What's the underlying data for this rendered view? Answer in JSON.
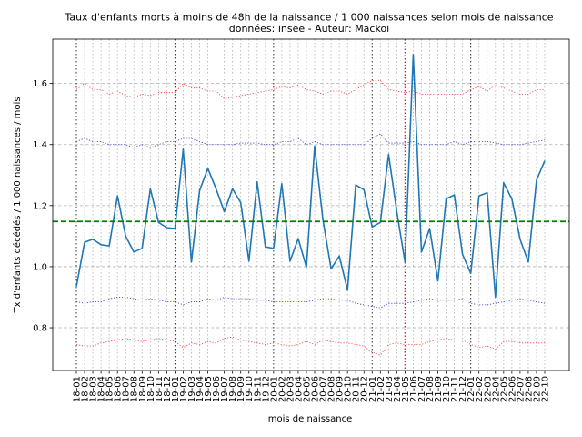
{
  "chart_data": {
    "type": "line",
    "title": "Taux d'enfants morts à moins de 48h de la naissance / 1 000 naissances selon mois de naissance",
    "subtitle": "données: insee - Auteur: Mackoi",
    "xlabel": "mois de naissance",
    "ylabel": "Tx d'enfants décédés / 1 000 naissances / mois",
    "ylim": [
      0.66,
      1.745
    ],
    "yticks": [
      0.8,
      1.0,
      1.2,
      1.4,
      1.6
    ],
    "ytick_labels": [
      "0.8",
      "1.0",
      "1.2",
      "1.4",
      "1.6"
    ],
    "grid": "y-dashed",
    "reference_line": {
      "value": 1.148,
      "color": "#008000",
      "style": "dashed"
    },
    "year_separators": [
      "18-01",
      "19-01",
      "20-01",
      "21-01",
      "22-01"
    ],
    "marker_line": {
      "x": "21-05",
      "color": "#d62728"
    },
    "categories": [
      "18-01",
      "18-02",
      "18-03",
      "18-04",
      "18-05",
      "18-06",
      "18-07",
      "18-08",
      "18-09",
      "18-10",
      "18-11",
      "18-12",
      "19-01",
      "19-02",
      "19-03",
      "19-04",
      "19-05",
      "19-06",
      "19-07",
      "19-08",
      "19-09",
      "19-10",
      "19-11",
      "19-12",
      "20-01",
      "20-02",
      "20-03",
      "20-04",
      "20-05",
      "20-06",
      "20-07",
      "20-08",
      "20-09",
      "20-10",
      "20-11",
      "20-12",
      "21-01",
      "21-02",
      "21-03",
      "21-04",
      "21-05",
      "21-06",
      "21-07",
      "21-08",
      "21-09",
      "21-10",
      "21-11",
      "21-12",
      "22-01",
      "22-02",
      "22-03",
      "22-04",
      "22-05",
      "22-06",
      "22-07",
      "22-08",
      "22-09",
      "22-10"
    ],
    "series": [
      {
        "role": "main",
        "color": "#1f77b4",
        "values": [
          0.935,
          1.08,
          1.09,
          1.072,
          1.068,
          1.232,
          1.1,
          1.048,
          1.06,
          1.255,
          1.145,
          1.128,
          1.125,
          1.385,
          1.015,
          1.25,
          1.322,
          1.255,
          1.18,
          1.255,
          1.21,
          1.018,
          1.278,
          1.065,
          1.06,
          1.272,
          1.018,
          1.092,
          0.998,
          1.395,
          1.155,
          0.993,
          1.035,
          0.923,
          1.268,
          1.252,
          1.13,
          1.145,
          1.368,
          1.18,
          1.015,
          1.695,
          1.048,
          1.125,
          0.953,
          1.222,
          1.235,
          1.04,
          0.978,
          1.232,
          1.242,
          0.9,
          1.275,
          1.222,
          1.09,
          1.015,
          1.283,
          1.347
        ]
      },
      {
        "role": "upper-95",
        "color": "#3333cc",
        "values": [
          1.41,
          1.42,
          1.41,
          1.41,
          1.4,
          1.4,
          1.4,
          1.39,
          1.4,
          1.39,
          1.4,
          1.41,
          1.41,
          1.42,
          1.42,
          1.41,
          1.4,
          1.4,
          1.4,
          1.4,
          1.405,
          1.405,
          1.405,
          1.4,
          1.4,
          1.41,
          1.41,
          1.42,
          1.4,
          1.41,
          1.4,
          1.4,
          1.4,
          1.4,
          1.4,
          1.4,
          1.42,
          1.435,
          1.405,
          1.405,
          1.405,
          1.41,
          1.4,
          1.4,
          1.4,
          1.4,
          1.41,
          1.4,
          1.41,
          1.41,
          1.41,
          1.405,
          1.4,
          1.4,
          1.4,
          1.405,
          1.41,
          1.415
        ]
      },
      {
        "role": "lower-95",
        "color": "#3333cc",
        "values": [
          0.885,
          0.88,
          0.885,
          0.885,
          0.895,
          0.9,
          0.9,
          0.895,
          0.89,
          0.895,
          0.89,
          0.885,
          0.885,
          0.875,
          0.885,
          0.885,
          0.895,
          0.89,
          0.9,
          0.895,
          0.895,
          0.895,
          0.89,
          0.89,
          0.885,
          0.885,
          0.885,
          0.885,
          0.885,
          0.89,
          0.895,
          0.895,
          0.89,
          0.89,
          0.88,
          0.875,
          0.87,
          0.865,
          0.88,
          0.88,
          0.88,
          0.885,
          0.89,
          0.895,
          0.89,
          0.89,
          0.89,
          0.895,
          0.88,
          0.875,
          0.875,
          0.88,
          0.885,
          0.89,
          0.895,
          0.89,
          0.885,
          0.88
        ]
      },
      {
        "role": "upper-99",
        "color": "#ff3333",
        "values": [
          1.58,
          1.6,
          1.58,
          1.58,
          1.565,
          1.575,
          1.56,
          1.555,
          1.565,
          1.56,
          1.57,
          1.57,
          1.57,
          1.6,
          1.585,
          1.585,
          1.575,
          1.575,
          1.55,
          1.555,
          1.56,
          1.565,
          1.57,
          1.575,
          1.58,
          1.59,
          1.585,
          1.595,
          1.58,
          1.575,
          1.565,
          1.575,
          1.575,
          1.565,
          1.58,
          1.595,
          1.61,
          1.61,
          1.58,
          1.575,
          1.57,
          1.575,
          1.565,
          1.565,
          1.565,
          1.565,
          1.565,
          1.565,
          1.58,
          1.59,
          1.575,
          1.595,
          1.585,
          1.575,
          1.565,
          1.565,
          1.58,
          1.58
        ]
      },
      {
        "role": "lower-99",
        "color": "#ff3333",
        "values": [
          0.745,
          0.74,
          0.74,
          0.75,
          0.755,
          0.76,
          0.765,
          0.76,
          0.755,
          0.76,
          0.765,
          0.76,
          0.755,
          0.735,
          0.75,
          0.745,
          0.755,
          0.75,
          0.765,
          0.77,
          0.76,
          0.755,
          0.75,
          0.745,
          0.75,
          0.745,
          0.74,
          0.745,
          0.755,
          0.745,
          0.76,
          0.755,
          0.75,
          0.75,
          0.745,
          0.74,
          0.72,
          0.71,
          0.745,
          0.75,
          0.745,
          0.745,
          0.745,
          0.755,
          0.76,
          0.765,
          0.76,
          0.76,
          0.745,
          0.735,
          0.74,
          0.73,
          0.755,
          0.755,
          0.75,
          0.75,
          0.75,
          0.75
        ]
      }
    ]
  }
}
